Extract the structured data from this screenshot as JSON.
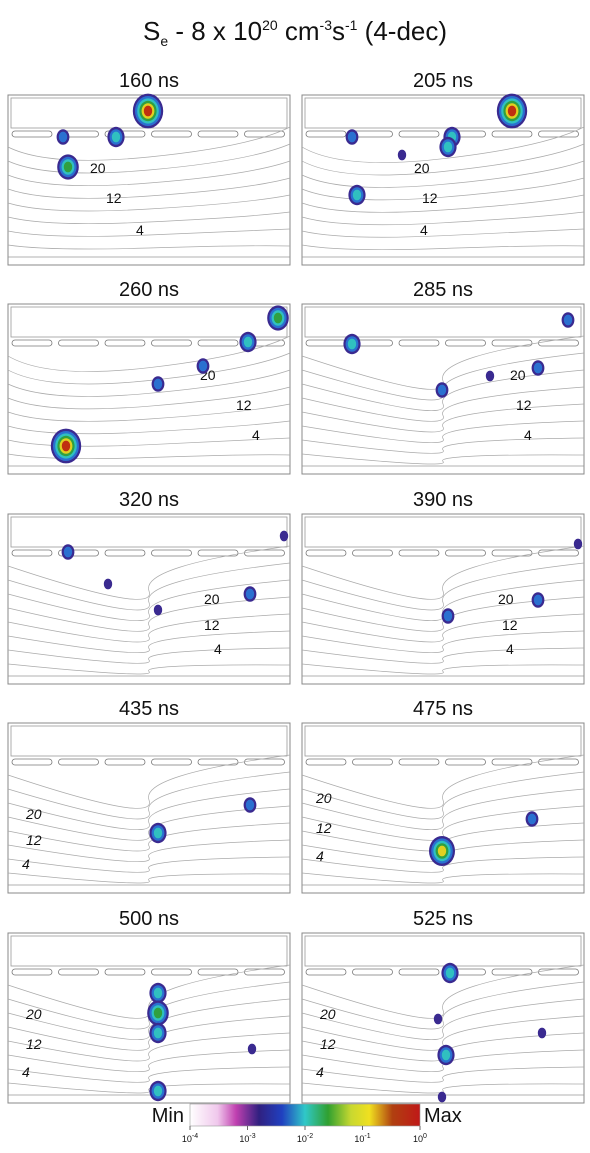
{
  "title": {
    "parts": [
      "S",
      "e",
      " - 8 x 10",
      "20",
      " cm",
      "-3",
      "s",
      "-1",
      " (4-dec)"
    ]
  },
  "panels": [
    {
      "title": "160 ns",
      "contour_labels": [
        "20",
        "12",
        "4"
      ]
    },
    {
      "title": "205 ns",
      "contour_labels": [
        "20",
        "12",
        "4"
      ]
    },
    {
      "title": "260 ns",
      "contour_labels": [
        "20",
        "12",
        "4"
      ]
    },
    {
      "title": "285 ns",
      "contour_labels": [
        "20",
        "12",
        "4"
      ]
    },
    {
      "title": "320 ns",
      "contour_labels": [
        "20",
        "12",
        "4"
      ]
    },
    {
      "title": "390 ns",
      "contour_labels": [
        "20",
        "12",
        "4"
      ]
    },
    {
      "title": "435 ns",
      "contour_labels": [
        "20",
        "12",
        "4"
      ]
    },
    {
      "title": "475 ns",
      "contour_labels": [
        "20",
        "12",
        "4"
      ]
    },
    {
      "title": "500 ns",
      "contour_labels": [
        "20",
        "12",
        "4"
      ]
    },
    {
      "title": "525 ns",
      "contour_labels": [
        "20",
        "12",
        "4"
      ]
    }
  ],
  "colorbar": {
    "min_label": "Min",
    "max_label": "Max",
    "ticks": [
      {
        "base": "10",
        "exp": "-4"
      },
      {
        "base": "10",
        "exp": "-3"
      },
      {
        "base": "10",
        "exp": "-2"
      },
      {
        "base": "10",
        "exp": "-1"
      },
      {
        "base": "10",
        "exp": "0"
      }
    ]
  }
}
